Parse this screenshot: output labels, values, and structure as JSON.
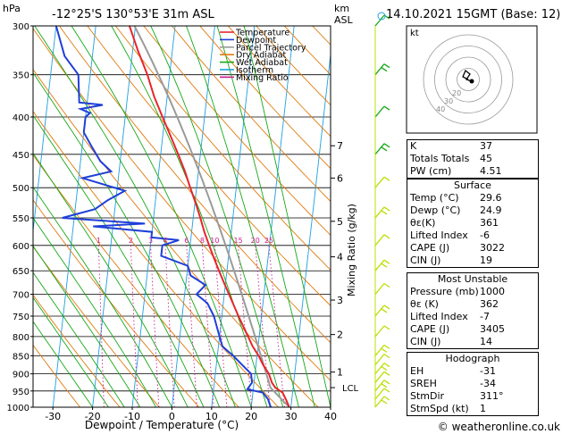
{
  "header": {
    "hpa_label": "hPa",
    "location": "-12°25'S  130°53'E  31m  ASL",
    "km_label": "km",
    "asl_label": "ASL",
    "datetime": "14.10.2021  15GMT  (Base: 12)"
  },
  "legend": {
    "items": [
      {
        "label": "Temperature",
        "color": "#e8252a"
      },
      {
        "label": "Dewpoint",
        "color": "#1f3fd8"
      },
      {
        "label": "Parcel Trajectory",
        "color": "#9a9a9a"
      },
      {
        "label": "Dry Adiabat",
        "color": "#e07b10"
      },
      {
        "label": "Wet Adiabat",
        "color": "#16a816"
      },
      {
        "label": "Isotherm",
        "color": "#1ea0e0"
      },
      {
        "label": "Mixing Ratio",
        "color": "#c81e8c"
      }
    ]
  },
  "chart_data": {
    "type": "line",
    "xlabel": "Dewpoint / Temperature (°C)",
    "ylabel_right": "Mixing Ratio (g/kg)",
    "xlim": [
      -35,
      40
    ],
    "ylim_hpa": [
      1000,
      300
    ],
    "x_ticks": [
      -30,
      -20,
      -10,
      0,
      10,
      20,
      30,
      40
    ],
    "pressure_ticks": [
      300,
      350,
      400,
      450,
      500,
      550,
      600,
      650,
      700,
      750,
      800,
      850,
      900,
      950,
      1000
    ],
    "km_ticks": [
      {
        "label": "7",
        "p": 438
      },
      {
        "label": "6",
        "p": 485
      },
      {
        "label": "5",
        "p": 556
      },
      {
        "label": "4",
        "p": 622
      },
      {
        "label": "3",
        "p": 713
      },
      {
        "label": "2",
        "p": 795
      },
      {
        "label": "1",
        "p": 895
      }
    ],
    "lcl": {
      "label": "LCL",
      "p": 940
    },
    "mixing_ratio_labels": [
      "1",
      "2",
      "3",
      "4",
      "6",
      "8",
      "10",
      "15",
      "20",
      "25"
    ],
    "mixing_ratio_values": [
      1,
      2,
      3,
      4,
      6,
      8,
      10,
      15,
      20,
      25
    ],
    "series": [
      {
        "name": "Temperature",
        "points": [
          [
            29.6,
            1000
          ],
          [
            28.5,
            975
          ],
          [
            27.5,
            955
          ],
          [
            25.5,
            940
          ],
          [
            24.5,
            925
          ],
          [
            23.5,
            900
          ],
          [
            21.8,
            875
          ],
          [
            20.4,
            850
          ],
          [
            18.6,
            825
          ],
          [
            17.2,
            800
          ],
          [
            14.2,
            750
          ],
          [
            11.2,
            700
          ],
          [
            9.6,
            675
          ],
          [
            8.0,
            650
          ],
          [
            6.4,
            625
          ],
          [
            4.8,
            600
          ],
          [
            3.2,
            575
          ],
          [
            1.8,
            550
          ],
          [
            0.2,
            525
          ],
          [
            -1.6,
            500
          ],
          [
            -3.4,
            475
          ],
          [
            -5.6,
            450
          ],
          [
            -8.0,
            425
          ],
          [
            -10.6,
            400
          ],
          [
            -13.3,
            375
          ],
          [
            -15.6,
            350
          ],
          [
            -18.6,
            325
          ],
          [
            -21.5,
            300
          ]
        ]
      },
      {
        "name": "Dewpoint",
        "points": [
          [
            24.9,
            1000
          ],
          [
            24.0,
            975
          ],
          [
            22.5,
            955
          ],
          [
            18.5,
            945
          ],
          [
            19.5,
            925
          ],
          [
            19.0,
            900
          ],
          [
            16.5,
            875
          ],
          [
            14.0,
            850
          ],
          [
            11.0,
            825
          ],
          [
            10.0,
            800
          ],
          [
            8.0,
            750
          ],
          [
            6.0,
            720
          ],
          [
            3.0,
            700
          ],
          [
            5.0,
            680
          ],
          [
            1.0,
            660
          ],
          [
            0.0,
            640
          ],
          [
            -7.0,
            620
          ],
          [
            -7.0,
            600
          ],
          [
            -3.0,
            590
          ],
          [
            -10.0,
            585
          ],
          [
            -10.0,
            575
          ],
          [
            -25.0,
            565
          ],
          [
            -12.0,
            560
          ],
          [
            -33.0,
            550
          ],
          [
            -25.0,
            535
          ],
          [
            -22.0,
            520
          ],
          [
            -18.0,
            505
          ],
          [
            -29.0,
            485
          ],
          [
            -22.0,
            475
          ],
          [
            -25.0,
            460
          ],
          [
            -27.5,
            440
          ],
          [
            -30.0,
            420
          ],
          [
            -30.0,
            400
          ],
          [
            -29.0,
            395
          ],
          [
            -31.5,
            390
          ],
          [
            -26.0,
            385
          ],
          [
            -32.0,
            382
          ],
          [
            -33.0,
            350
          ],
          [
            -37.0,
            330
          ],
          [
            -40.0,
            300
          ]
        ]
      }
    ]
  },
  "hodograph": {
    "kt_label": "kt",
    "ring_labels": [
      "20",
      "30",
      "40"
    ]
  },
  "indices_top": [
    {
      "label": "K",
      "value": "37"
    },
    {
      "label": "Totals Totals",
      "value": "45"
    },
    {
      "label": "PW (cm)",
      "value": "4.51"
    }
  ],
  "surface": {
    "title": "Surface",
    "rows": [
      {
        "label": "Temp (°C)",
        "value": "29.6"
      },
      {
        "label": "Dewp (°C)",
        "value": "24.9"
      },
      {
        "label": "θε(K)",
        "value": "361"
      },
      {
        "label": "Lifted Index",
        "value": "-6"
      },
      {
        "label": "CAPE (J)",
        "value": "3022"
      },
      {
        "label": "CIN (J)",
        "value": "19"
      }
    ]
  },
  "most_unstable": {
    "title": "Most Unstable",
    "rows": [
      {
        "label": "Pressure (mb)",
        "value": "1000"
      },
      {
        "label": "θε (K)",
        "value": "362"
      },
      {
        "label": "Lifted Index",
        "value": "-7"
      },
      {
        "label": "CAPE (J)",
        "value": "3405"
      },
      {
        "label": "CIN (J)",
        "value": "14"
      }
    ]
  },
  "hodograph_table": {
    "title": "Hodograph",
    "rows": [
      {
        "label": "EH",
        "value": "-31"
      },
      {
        "label": "SREH",
        "value": "-34"
      },
      {
        "label": "StmDir",
        "value": "311°"
      },
      {
        "label": "StmSpd (kt)",
        "value": "1"
      }
    ]
  },
  "footer": {
    "copyright": "© weatheronline.co.uk"
  }
}
